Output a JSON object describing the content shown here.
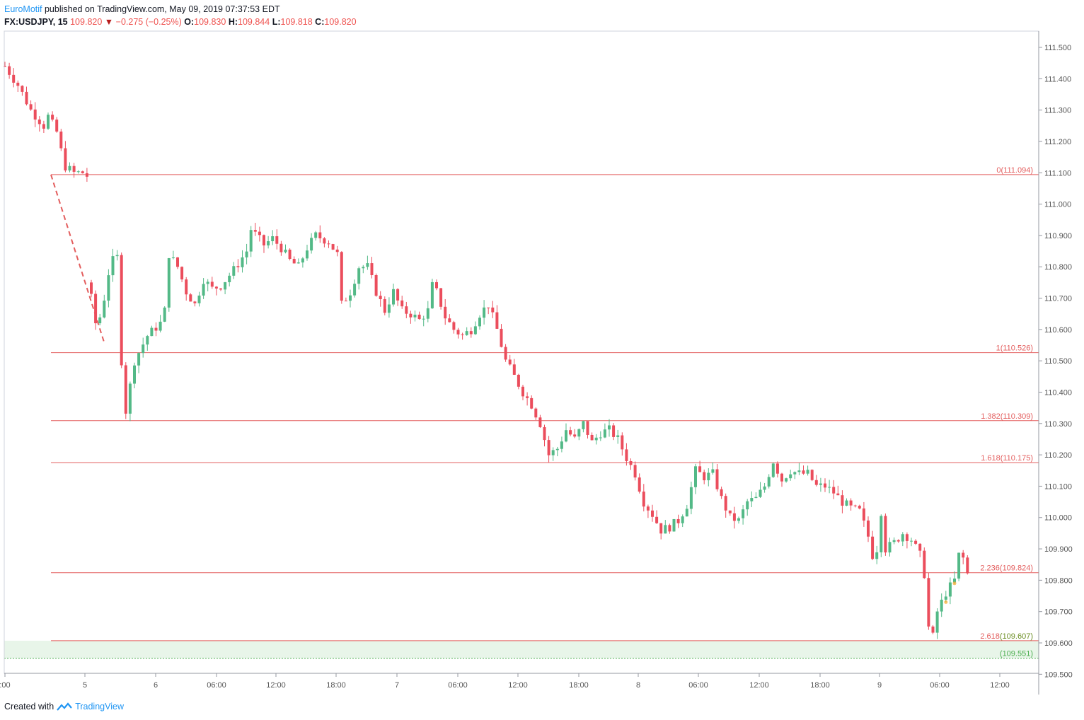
{
  "header": {
    "author": "EuroMotif",
    "published": "published on TradingView.com, May 09, 2019 07:37:53 EDT",
    "symbol": "FX:USDJPY, 15",
    "last": "109.820",
    "change": "−0.275 (−0.25%)",
    "o_label": "O:",
    "o": "109.830",
    "h_label": "H:",
    "h": "109.844",
    "l_label": "L:",
    "l": "109.818",
    "c_label": "C:",
    "c": "109.820"
  },
  "footer": {
    "created_with": "Created with",
    "brand": "TradingView"
  },
  "colors": {
    "up": "#53b987",
    "down": "#eb4d5c",
    "fib": "#e35d5d",
    "zone": "#e8f5e9",
    "zone_label": "#4caf50",
    "axis": "#555555"
  },
  "chart_data": {
    "type": "candlestick",
    "yaxis": {
      "ticks": [
        "111.500",
        "111.400",
        "111.300",
        "111.200",
        "111.100",
        "111.000",
        "110.900",
        "110.800",
        "110.700",
        "110.600",
        "110.500",
        "110.400",
        "110.300",
        "110.200",
        "110.100",
        "110.000",
        "109.900",
        "109.800",
        "109.700",
        "109.600",
        "109.500"
      ],
      "range": [
        109.5,
        111.55
      ]
    },
    "xaxis": {
      "ticks": [
        ":00",
        "5",
        "6",
        "06:00",
        "12:00",
        "18:00",
        "7",
        "06:00",
        "12:00",
        "18:00",
        "8",
        "06:00",
        "12:00",
        "18:00",
        "9",
        "06:00",
        "12:00"
      ]
    },
    "fib_levels": [
      {
        "ratio": "0",
        "price": 111.094,
        "label": "111.094"
      },
      {
        "ratio": "1",
        "price": 110.526,
        "label": "110.526"
      },
      {
        "ratio": "1.382",
        "price": 110.309,
        "label": "110.309"
      },
      {
        "ratio": "1.618",
        "price": 110.175,
        "label": "110.175"
      },
      {
        "ratio": "2.236",
        "price": 109.824,
        "label": "109.824"
      },
      {
        "ratio": "2.618",
        "price": 109.607,
        "label": "109.607"
      }
    ],
    "zone": {
      "top": 109.607,
      "bottom": 109.551,
      "label": "109.551"
    },
    "swing_line": {
      "from": 111.094,
      "to": 110.526
    },
    "price_path": [
      [
        0,
        111.44
      ],
      [
        3,
        111.38
      ],
      [
        6,
        111.3
      ],
      [
        9,
        111.25
      ],
      [
        10,
        111.28
      ],
      [
        12,
        111.23
      ],
      [
        13,
        111.17
      ],
      [
        14,
        111.12
      ],
      [
        16,
        111.1
      ],
      [
        18,
        111.1
      ],
      [
        19,
        111.09
      ],
      [
        20,
        110.7
      ],
      [
        21,
        110.62
      ],
      [
        22,
        110.64
      ],
      [
        23,
        110.7
      ],
      [
        24,
        110.78
      ],
      [
        25,
        110.82
      ],
      [
        26,
        110.83
      ],
      [
        27,
        110.5
      ],
      [
        28,
        110.34
      ],
      [
        29,
        110.42
      ],
      [
        30,
        110.5
      ],
      [
        33,
        110.58
      ],
      [
        36,
        110.62
      ],
      [
        37,
        110.66
      ],
      [
        38,
        110.84
      ],
      [
        40,
        110.8
      ],
      [
        42,
        110.72
      ],
      [
        44,
        110.68
      ],
      [
        46,
        110.76
      ],
      [
        48,
        110.73
      ],
      [
        50,
        110.74
      ],
      [
        53,
        110.79
      ],
      [
        56,
        110.85
      ],
      [
        57,
        110.92
      ],
      [
        60,
        110.87
      ],
      [
        62,
        110.89
      ],
      [
        64,
        110.86
      ],
      [
        66,
        110.82
      ],
      [
        68,
        110.8
      ],
      [
        70,
        110.86
      ],
      [
        72,
        110.9
      ],
      [
        75,
        110.88
      ],
      [
        77,
        110.84
      ],
      [
        78,
        110.68
      ],
      [
        80,
        110.72
      ],
      [
        82,
        110.8
      ],
      [
        84,
        110.8
      ],
      [
        86,
        110.72
      ],
      [
        88,
        110.66
      ],
      [
        90,
        110.72
      ],
      [
        92,
        110.66
      ],
      [
        94,
        110.65
      ],
      [
        96,
        110.63
      ],
      [
        98,
        110.66
      ],
      [
        99,
        110.74
      ],
      [
        100,
        110.72
      ],
      [
        102,
        110.64
      ],
      [
        104,
        110.6
      ],
      [
        106,
        110.58
      ],
      [
        108,
        110.6
      ],
      [
        110,
        110.65
      ],
      [
        112,
        110.68
      ],
      [
        114,
        110.6
      ],
      [
        116,
        110.5
      ],
      [
        118,
        110.45
      ],
      [
        120,
        110.4
      ],
      [
        122,
        110.36
      ],
      [
        124,
        110.3
      ],
      [
        126,
        110.2
      ],
      [
        128,
        110.22
      ],
      [
        130,
        110.28
      ],
      [
        132,
        110.25
      ],
      [
        134,
        110.3
      ],
      [
        136,
        110.24
      ],
      [
        138,
        110.27
      ],
      [
        140,
        110.28
      ],
      [
        142,
        110.25
      ],
      [
        144,
        110.19
      ],
      [
        146,
        110.14
      ],
      [
        148,
        110.05
      ],
      [
        150,
        110.01
      ],
      [
        152,
        109.96
      ],
      [
        154,
        109.97
      ],
      [
        156,
        109.99
      ],
      [
        158,
        110.04
      ],
      [
        160,
        110.15
      ],
      [
        162,
        110.13
      ],
      [
        164,
        110.14
      ],
      [
        166,
        110.06
      ],
      [
        168,
        110.0
      ],
      [
        170,
        109.99
      ],
      [
        172,
        110.05
      ],
      [
        174,
        110.06
      ],
      [
        176,
        110.1
      ],
      [
        178,
        110.18
      ],
      [
        180,
        110.12
      ],
      [
        182,
        110.15
      ],
      [
        184,
        110.14
      ],
      [
        186,
        110.14
      ],
      [
        188,
        110.1
      ],
      [
        190,
        110.1
      ],
      [
        192,
        110.08
      ],
      [
        194,
        110.05
      ],
      [
        196,
        110.03
      ],
      [
        198,
        110.02
      ],
      [
        200,
        109.94
      ],
      [
        201,
        109.88
      ],
      [
        202,
        109.9
      ],
      [
        203,
        110.02
      ],
      [
        204,
        109.9
      ],
      [
        206,
        109.92
      ],
      [
        208,
        109.95
      ],
      [
        210,
        109.93
      ],
      [
        212,
        109.88
      ],
      [
        213,
        109.82
      ],
      [
        214,
        109.65
      ],
      [
        215,
        109.62
      ],
      [
        216,
        109.7
      ],
      [
        218,
        109.76
      ],
      [
        219,
        109.78
      ],
      [
        220,
        109.8
      ],
      [
        221,
        109.88
      ],
      [
        222,
        109.87
      ],
      [
        223,
        109.82
      ]
    ]
  }
}
